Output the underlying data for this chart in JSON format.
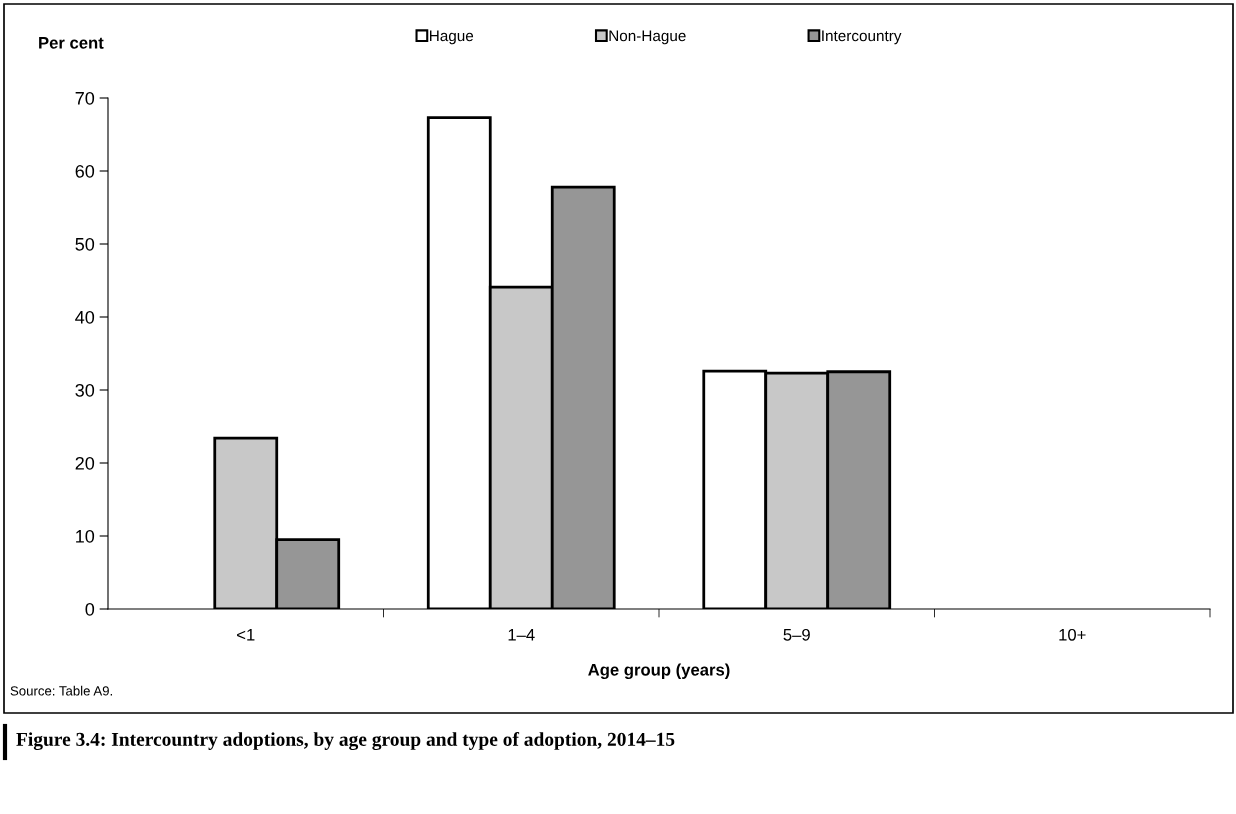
{
  "chart_data": {
    "type": "bar",
    "title": "Figure 3.4: Intercountry adoptions, by age group and type of adoption, 2014–15",
    "xlabel": "Age group (years)",
    "ylabel": "Per cent",
    "categories": [
      "<1",
      "1–4",
      "5–9",
      "10+"
    ],
    "series": [
      {
        "name": "Hague",
        "color": "#ffffff",
        "values": [
          null,
          67.3,
          32.6,
          null
        ]
      },
      {
        "name": "Non-Hague",
        "color": "#c8c8c8",
        "values": [
          23.4,
          44.1,
          32.3,
          null
        ]
      },
      {
        "name": "Intercountry",
        "color": "#969696",
        "values": [
          9.5,
          57.8,
          32.5,
          null
        ]
      }
    ],
    "ylim": [
      0,
      70
    ],
    "yticks": [
      0,
      10,
      20,
      30,
      40,
      50,
      60,
      70
    ],
    "grid": false,
    "legend": "top",
    "annotations": [
      "Source: Table A9."
    ]
  }
}
